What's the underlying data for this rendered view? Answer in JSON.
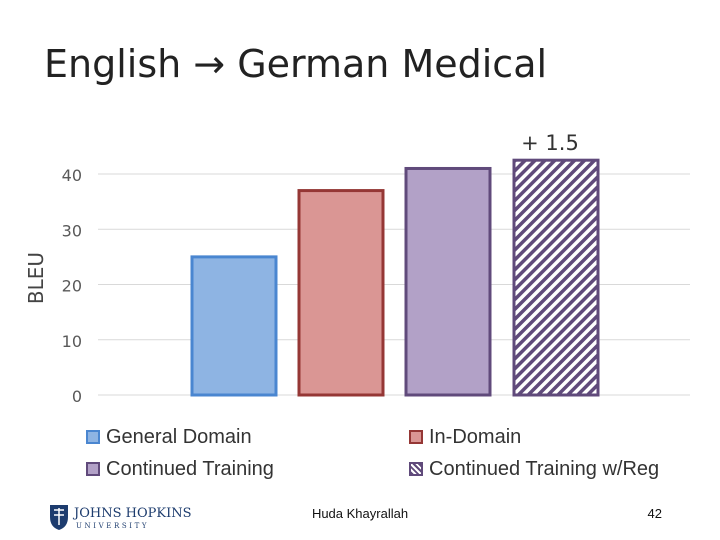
{
  "slide": {
    "title": "English → German Medical",
    "author": "Huda Khayrallah",
    "page_number": "42",
    "logo_text_top": "JOHNS HOPKINS",
    "logo_text_bottom": "UNIVERSITY"
  },
  "chart_data": {
    "type": "bar",
    "title": "",
    "ylabel": "BLEU",
    "xlabel": "",
    "ylim": [
      0,
      40
    ],
    "yticks": [
      0,
      10,
      20,
      30,
      40
    ],
    "grid": true,
    "legend_position": "bottom",
    "annotation": "+ 1.5",
    "series": [
      {
        "name": "General Domain",
        "value": 25,
        "fill": "#8eb4e3",
        "stroke": "#4a86d0",
        "pattern": "solid"
      },
      {
        "name": "In-Domain",
        "value": 37,
        "fill": "#da9694",
        "stroke": "#953735",
        "pattern": "solid"
      },
      {
        "name": "Continued Training",
        "value": 41,
        "fill": "#b2a1c7",
        "stroke": "#604a7b",
        "pattern": "solid"
      },
      {
        "name": "Continued Training w/Reg",
        "value": 42.5,
        "fill": "#b2a1c7",
        "stroke": "#604a7b",
        "pattern": "hatched"
      }
    ]
  }
}
